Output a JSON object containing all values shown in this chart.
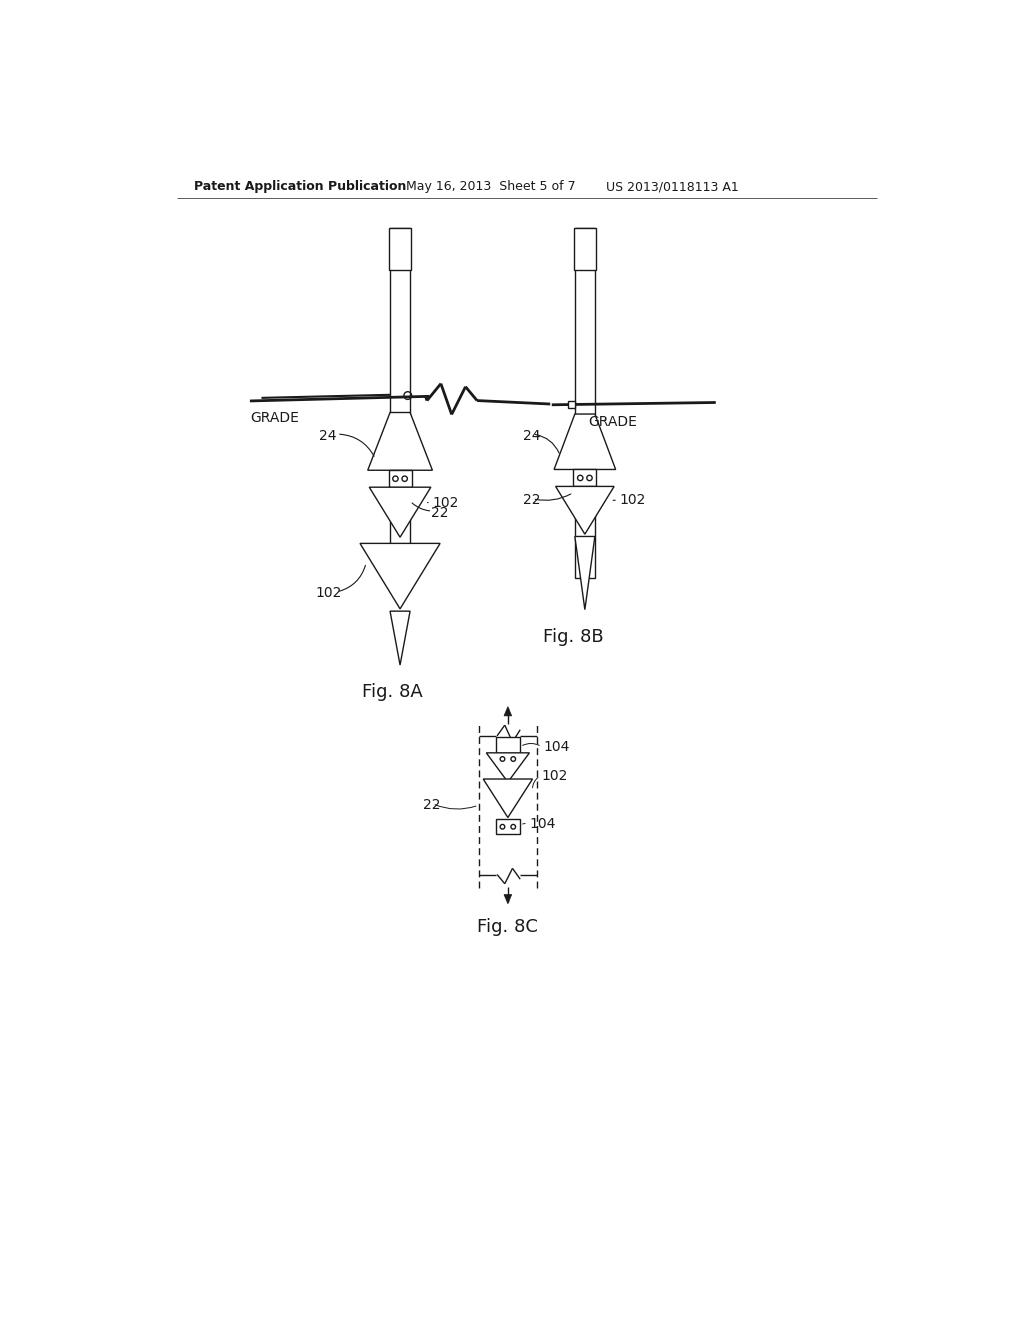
{
  "bg_color": "#ffffff",
  "line_color": "#1a1a1a",
  "header_left": "Patent Application Publication",
  "header_mid": "May 16, 2013  Sheet 5 of 7",
  "header_right": "US 2013/0118113 A1",
  "fig8a_label": "Fig. 8A",
  "fig8b_label": "Fig. 8B",
  "fig8c_label": "Fig. 8C"
}
